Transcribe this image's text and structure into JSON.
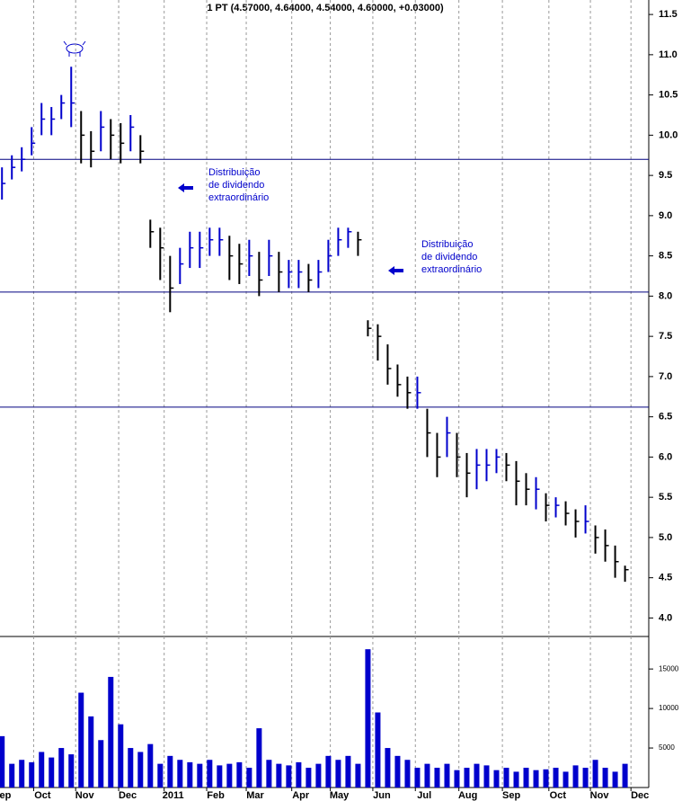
{
  "chart_data": {
    "type": "hlc",
    "title": "1 PT (4.57000, 4.64000, 4.54000, 4.60000, +0.03000)",
    "up_color": "#0000cc",
    "down_color": "#000000",
    "volume_color": "#0000cc",
    "line_color": "#000080",
    "x": [
      0,
      1,
      2,
      3,
      4,
      5,
      6,
      7,
      8,
      9,
      10,
      11,
      12,
      13,
      14,
      15,
      16,
      17,
      18,
      19,
      20,
      21,
      22,
      23,
      24,
      25,
      26,
      27,
      28,
      29,
      30,
      31,
      32,
      33,
      34,
      35,
      36,
      37,
      38,
      39,
      40,
      41,
      42,
      43,
      44,
      45,
      46,
      47,
      48,
      49,
      50,
      51,
      52,
      53,
      54,
      55,
      56,
      57,
      58,
      59,
      60,
      61,
      62,
      63
    ],
    "xlim": [
      -0.2,
      65.4
    ],
    "xticks": [
      {
        "value": -0.9,
        "label": "Sep"
      },
      {
        "value": 3.2,
        "label": "Oct"
      },
      {
        "value": 7.45,
        "label": "Nov"
      },
      {
        "value": 11.8,
        "label": "Dec"
      },
      {
        "value": 16.4,
        "label": "2011"
      },
      {
        "value": 20.7,
        "label": "Feb"
      },
      {
        "value": 24.7,
        "label": "Mar"
      },
      {
        "value": 29.3,
        "label": "Apr"
      },
      {
        "value": 33.2,
        "label": "May"
      },
      {
        "value": 37.5,
        "label": "Jun"
      },
      {
        "value": 41.8,
        "label": "Jul"
      },
      {
        "value": 46.2,
        "label": "Aug"
      },
      {
        "value": 50.6,
        "label": "Sep"
      },
      {
        "value": 55.3,
        "label": "Oct"
      },
      {
        "value": 59.5,
        "label": "Nov"
      },
      {
        "value": 63.6,
        "label": "Dec"
      }
    ],
    "close": [
      9.4,
      9.6,
      9.7,
      9.9,
      10.2,
      10.2,
      10.4,
      10.4,
      10.0,
      9.8,
      10.1,
      10.0,
      9.9,
      10.1,
      9.8,
      8.8,
      8.6,
      8.1,
      8.4,
      8.6,
      8.6,
      8.7,
      8.7,
      8.5,
      8.4,
      8.5,
      8.2,
      8.5,
      8.3,
      8.3,
      8.3,
      8.2,
      8.3,
      8.5,
      8.7,
      8.8,
      8.7,
      7.6,
      7.5,
      7.1,
      6.9,
      6.8,
      6.8,
      6.3,
      6.0,
      6.3,
      6.0,
      5.8,
      5.9,
      5.9,
      6.0,
      5.9,
      5.7,
      5.6,
      5.6,
      5.4,
      5.4,
      5.3,
      5.2,
      5.2,
      5.0,
      4.9,
      4.7,
      4.6
    ],
    "high": [
      9.6,
      9.75,
      9.85,
      10.1,
      10.4,
      10.35,
      10.5,
      10.85,
      10.3,
      10.05,
      10.3,
      10.2,
      10.15,
      10.25,
      10.0,
      8.95,
      8.85,
      8.5,
      8.6,
      8.8,
      8.8,
      8.85,
      8.85,
      8.75,
      8.65,
      8.7,
      8.55,
      8.7,
      8.55,
      8.45,
      8.45,
      8.4,
      8.45,
      8.7,
      8.85,
      8.85,
      8.8,
      7.7,
      7.65,
      7.4,
      7.15,
      7.0,
      7.0,
      6.6,
      6.3,
      6.5,
      6.3,
      6.05,
      6.1,
      6.1,
      6.1,
      6.05,
      5.95,
      5.8,
      5.75,
      5.55,
      5.5,
      5.45,
      5.35,
      5.4,
      5.15,
      5.1,
      4.9,
      4.65
    ],
    "low": [
      9.2,
      9.45,
      9.55,
      9.75,
      10.0,
      10.0,
      10.2,
      10.1,
      9.65,
      9.6,
      9.8,
      9.7,
      9.65,
      9.8,
      9.65,
      8.6,
      8.2,
      7.8,
      8.15,
      8.35,
      8.35,
      8.5,
      8.5,
      8.2,
      8.15,
      8.25,
      8.0,
      8.25,
      8.05,
      8.1,
      8.1,
      8.05,
      8.1,
      8.3,
      8.5,
      8.6,
      8.5,
      7.5,
      7.2,
      6.9,
      6.75,
      6.6,
      6.6,
      6.0,
      5.75,
      6.0,
      5.75,
      5.5,
      5.6,
      5.7,
      5.8,
      5.7,
      5.4,
      5.4,
      5.35,
      5.2,
      5.25,
      5.15,
      5.0,
      5.05,
      4.8,
      4.7,
      4.5,
      4.45
    ],
    "ylim": [
      3.77,
      11.68
    ],
    "yticks": [
      {
        "value": 4,
        "label": "4.0"
      },
      4.5,
      {
        "value": 5,
        "label": "5.0"
      },
      5.5,
      {
        "value": 6,
        "label": "6.0"
      },
      6.5,
      {
        "value": 7,
        "label": "7.0"
      },
      7.5,
      {
        "value": 8,
        "label": "8.0"
      },
      8.5,
      {
        "value": 9,
        "label": "9.0"
      },
      9.5,
      {
        "value": 10,
        "label": "10.0"
      },
      10.5,
      {
        "value": 11,
        "label": "11.0"
      },
      11.5
    ],
    "hlines": [
      9.7,
      8.05,
      6.62
    ],
    "annotations": [
      {
        "lines": [
          "Distribuição",
          "de dividendo",
          "extraordinário"
        ]
      },
      {
        "lines": [
          "Distribuição",
          "de dividendo",
          "extraordinário"
        ]
      }
    ],
    "volume": [
      6500,
      3000,
      3500,
      3200,
      4500,
      3800,
      5000,
      4200,
      12000,
      9000,
      6000,
      14000,
      8000,
      5000,
      4500,
      5500,
      3000,
      4000,
      3500,
      3200,
      3000,
      3500,
      2800,
      3000,
      3200,
      2500,
      7500,
      3500,
      3000,
      2800,
      3200,
      2500,
      3000,
      4000,
      3500,
      4000,
      3000,
      17500,
      9500,
      5000,
      4000,
      3500,
      2500,
      3000,
      2500,
      3000,
      2200,
      2500,
      3000,
      2800,
      2200,
      2500,
      2000,
      2500,
      2200,
      2300,
      2500,
      2000,
      2800,
      2500,
      3500,
      2500,
      2000,
      3000
    ],
    "vlim": [
      0,
      19000
    ],
    "vticks": [
      5000,
      10000,
      15000
    ]
  }
}
